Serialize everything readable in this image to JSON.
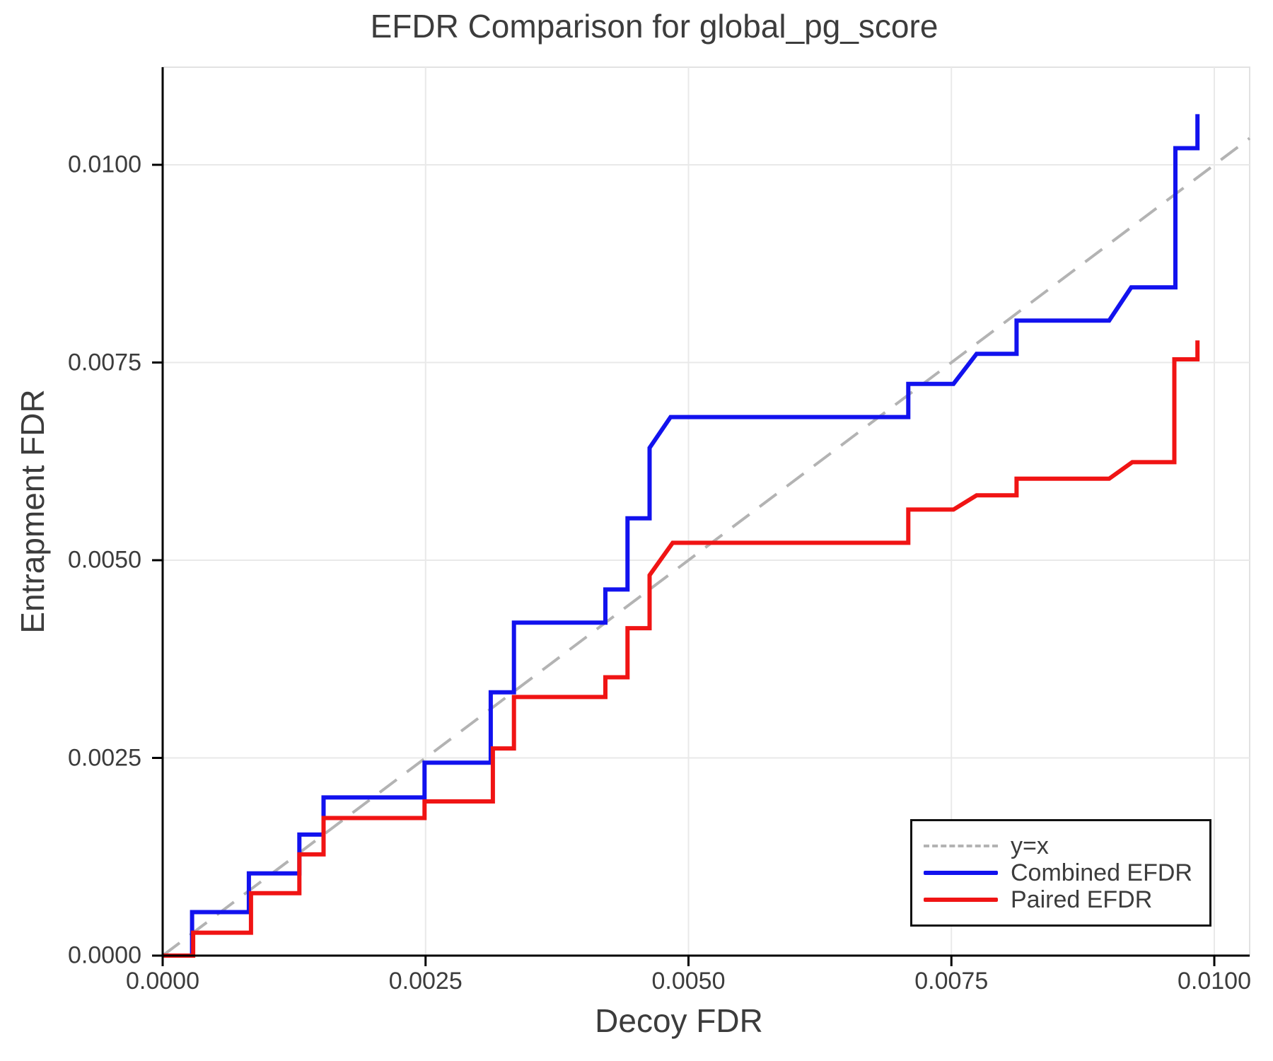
{
  "title": "EFDR Comparison for global_pg_score",
  "chart_data": {
    "type": "line",
    "subtype": "step-curves",
    "title": "EFDR Comparison for global_pg_score",
    "xlabel": "Decoy FDR",
    "ylabel": "Entrapment FDR",
    "xlim": [
      0.0,
      0.010336
    ],
    "ylim": [
      0.0,
      0.011235
    ],
    "grid": true,
    "legend_position": "bottom-right",
    "x_ticks": {
      "values": [
        0.0,
        0.0025,
        0.005,
        0.0075,
        0.01
      ],
      "labels": [
        "0.0000",
        "0.0025",
        "0.0050",
        "0.0075",
        "0.0100"
      ]
    },
    "y_ticks": {
      "values": [
        0.0,
        0.0025,
        0.005,
        0.0075,
        0.01
      ],
      "labels": [
        "0.0000",
        "0.0025",
        "0.0050",
        "0.0075",
        "0.0100"
      ]
    },
    "series": [
      {
        "name": "y=x",
        "style": "dashed",
        "color": "#b3b3b3",
        "width": 4,
        "points": [
          [
            0.0,
            0.0
          ],
          [
            0.010336,
            0.010336
          ]
        ]
      },
      {
        "name": "Combined EFDR",
        "style": "solid",
        "color": "#1212ee",
        "width": 6,
        "points": [
          [
            0.0,
            0.0
          ],
          [
            0.00028,
            0.0
          ],
          [
            0.00028,
            0.00055
          ],
          [
            0.00082,
            0.00055
          ],
          [
            0.00082,
            0.00104
          ],
          [
            0.0013,
            0.00104
          ],
          [
            0.0013,
            0.00153
          ],
          [
            0.00153,
            0.00153
          ],
          [
            0.00153,
            0.002
          ],
          [
            0.00249,
            0.002
          ],
          [
            0.00249,
            0.00244
          ],
          [
            0.00312,
            0.00244
          ],
          [
            0.00312,
            0.00333
          ],
          [
            0.00334,
            0.00333
          ],
          [
            0.00334,
            0.00421
          ],
          [
            0.00421,
            0.00421
          ],
          [
            0.00421,
            0.00463
          ],
          [
            0.00442,
            0.00463
          ],
          [
            0.00442,
            0.00553
          ],
          [
            0.00463,
            0.00553
          ],
          [
            0.00463,
            0.00642
          ],
          [
            0.00483,
            0.00681
          ],
          [
            0.00709,
            0.00681
          ],
          [
            0.00709,
            0.00723
          ],
          [
            0.00752,
            0.00723
          ],
          [
            0.00774,
            0.00761
          ],
          [
            0.00812,
            0.00761
          ],
          [
            0.00812,
            0.00803
          ],
          [
            0.009,
            0.00803
          ],
          [
            0.00921,
            0.00845
          ],
          [
            0.00963,
            0.00845
          ],
          [
            0.00963,
            0.01021
          ],
          [
            0.00984,
            0.01021
          ],
          [
            0.00984,
            0.01064
          ]
        ]
      },
      {
        "name": "Paired EFDR",
        "style": "solid",
        "color": "#f01414",
        "width": 6,
        "points": [
          [
            0.0,
            0.0
          ],
          [
            0.00029,
            0.0
          ],
          [
            0.00029,
            0.00029
          ],
          [
            0.00084,
            0.00029
          ],
          [
            0.00084,
            0.00079
          ],
          [
            0.0013,
            0.00079
          ],
          [
            0.0013,
            0.00128
          ],
          [
            0.00153,
            0.00128
          ],
          [
            0.00153,
            0.00174
          ],
          [
            0.00249,
            0.00174
          ],
          [
            0.00249,
            0.00195
          ],
          [
            0.00314,
            0.00195
          ],
          [
            0.00314,
            0.00262
          ],
          [
            0.00334,
            0.00262
          ],
          [
            0.00334,
            0.00327
          ],
          [
            0.00421,
            0.00327
          ],
          [
            0.00421,
            0.00352
          ],
          [
            0.00442,
            0.00352
          ],
          [
            0.00442,
            0.00414
          ],
          [
            0.00463,
            0.00414
          ],
          [
            0.00463,
            0.00481
          ],
          [
            0.00485,
            0.00522
          ],
          [
            0.00709,
            0.00522
          ],
          [
            0.00709,
            0.00564
          ],
          [
            0.00752,
            0.00564
          ],
          [
            0.00774,
            0.00582
          ],
          [
            0.00812,
            0.00582
          ],
          [
            0.00812,
            0.00603
          ],
          [
            0.009,
            0.00603
          ],
          [
            0.00922,
            0.00624
          ],
          [
            0.00962,
            0.00624
          ],
          [
            0.00962,
            0.00754
          ],
          [
            0.00984,
            0.00754
          ],
          [
            0.00984,
            0.00778
          ]
        ]
      }
    ],
    "colors": {
      "grid": "#e9e9e9",
      "frame": "#e2e2e2",
      "axis": "#000000",
      "text": "#3c3c3c",
      "identity_line": "#b3b3b3",
      "combined": "#1212ee",
      "paired": "#f01414"
    }
  },
  "legend": {
    "items": [
      {
        "label": "y=x"
      },
      {
        "label": "Combined EFDR"
      },
      {
        "label": "Paired EFDR"
      }
    ]
  }
}
